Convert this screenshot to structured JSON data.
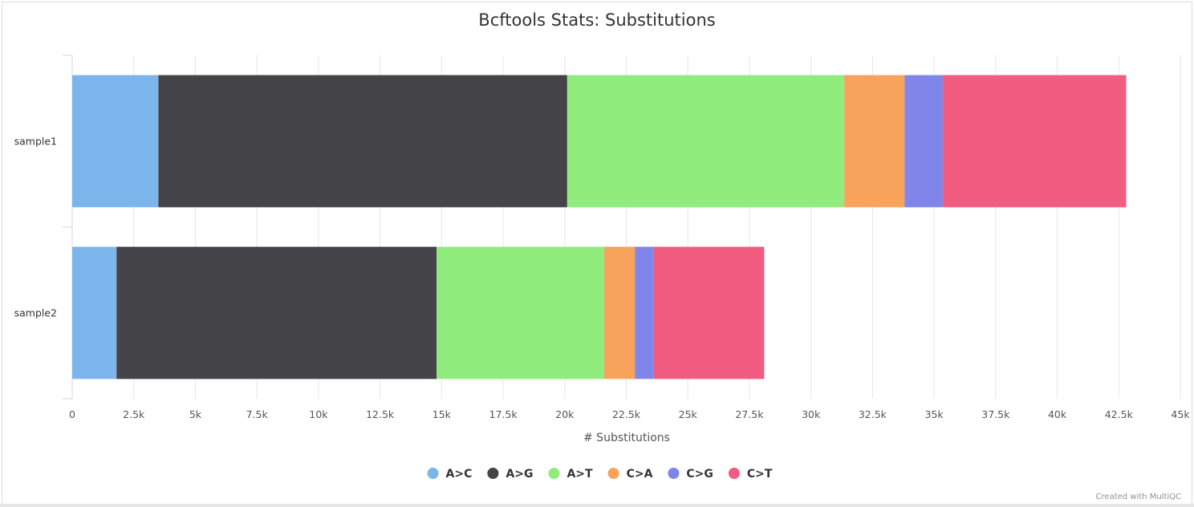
{
  "credit": "Created with MultiQC",
  "chart_data": {
    "type": "bar",
    "orientation": "horizontal",
    "stacked": true,
    "title": "Bcftools Stats: Substitutions",
    "xlabel": "# Substitutions",
    "ylabel": "",
    "xlim": [
      0,
      45000
    ],
    "tick_step": 2500,
    "tick_labels": [
      "0",
      "2.5k",
      "5k",
      "7.5k",
      "10k",
      "12.5k",
      "15k",
      "17.5k",
      "20k",
      "22.5k",
      "25k",
      "27.5k",
      "30k",
      "32.5k",
      "35k",
      "37.5k",
      "40k",
      "42.5k",
      "45k"
    ],
    "categories": [
      "sample1",
      "sample2"
    ],
    "grid": true,
    "legend_position": "bottom-center",
    "series": [
      {
        "name": "A>C",
        "color": "#7cb5ec",
        "values": [
          3500,
          1800
        ]
      },
      {
        "name": "A>G",
        "color": "#434348",
        "values": [
          16600,
          13000
        ]
      },
      {
        "name": "A>T",
        "color": "#90ed7d",
        "values": [
          11250,
          6800
        ]
      },
      {
        "name": "C>A",
        "color": "#f7a35c",
        "values": [
          2450,
          1250
        ]
      },
      {
        "name": "C>G",
        "color": "#8085e9",
        "values": [
          1550,
          750
        ]
      },
      {
        "name": "C>T",
        "color": "#f15c80",
        "values": [
          7450,
          4500
        ]
      }
    ]
  }
}
